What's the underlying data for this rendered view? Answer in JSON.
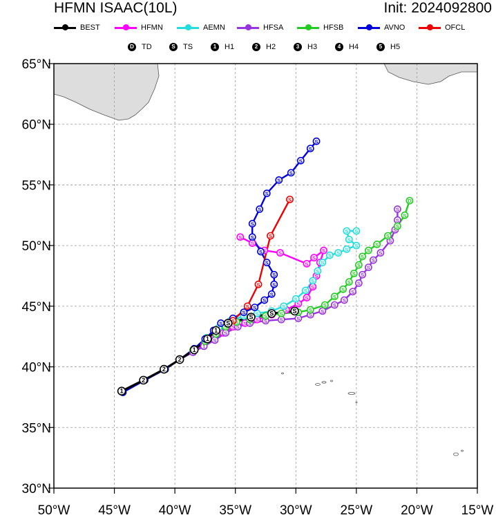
{
  "header": {
    "title": "HFMN ISAAC(10L)",
    "init_label": "Init: 2024092800"
  },
  "legend": [
    {
      "name": "BEST",
      "color": "#000000"
    },
    {
      "name": "HFMN",
      "color": "#ff00ff"
    },
    {
      "name": "AEMN",
      "color": "#22dddd"
    },
    {
      "name": "HFSA",
      "color": "#9933dd"
    },
    {
      "name": "HFSB",
      "color": "#22cc22"
    },
    {
      "name": "AVNO",
      "color": "#0000dd"
    },
    {
      "name": "OFCL",
      "color": "#ee0000"
    }
  ],
  "intensity_legend": [
    {
      "symbol": "D",
      "label": "TD"
    },
    {
      "symbol": "S",
      "label": "TS"
    },
    {
      "symbol": "1",
      "label": "H1"
    },
    {
      "symbol": "2",
      "label": "H2"
    },
    {
      "symbol": "3",
      "label": "H3"
    },
    {
      "symbol": "4",
      "label": "H4"
    },
    {
      "symbol": "5",
      "label": "H5"
    }
  ],
  "chart_data": {
    "type": "line",
    "title": "HFMN ISAAC(10L)",
    "subtitle": "Init: 2024092800",
    "x_axis": {
      "range": [
        -50,
        -15
      ],
      "ticks": [
        -50,
        -45,
        -40,
        -35,
        -30,
        -25,
        -20,
        -15
      ],
      "tick_labels": [
        "50°W",
        "45°W",
        "40°W",
        "35°W",
        "30°W",
        "25°W",
        "20°W",
        "15°W"
      ]
    },
    "y_axis": {
      "range": [
        30,
        65
      ],
      "ticks": [
        30,
        35,
        40,
        45,
        50,
        55,
        60,
        65
      ],
      "tick_labels": [
        "30°N",
        "35°N",
        "40°N",
        "45°N",
        "50°N",
        "55°N",
        "60°N",
        "65°N"
      ]
    },
    "grid": true,
    "legend_position": "top",
    "series": [
      {
        "name": "HFMN",
        "color": "#ff00ff",
        "points": [
          [
            -44.3,
            37.9,
            "1"
          ],
          [
            -42.5,
            38.9,
            "2"
          ],
          [
            -40.8,
            39.8,
            "2"
          ],
          [
            -39.6,
            40.6,
            "2"
          ],
          [
            -38.5,
            41.3,
            "1"
          ],
          [
            -37.6,
            41.8,
            "1"
          ],
          [
            -36.8,
            42.3,
            "S"
          ],
          [
            -36.0,
            42.8,
            "S"
          ],
          [
            -35.2,
            43.3,
            "S"
          ],
          [
            -34.2,
            43.6,
            "S"
          ],
          [
            -33.2,
            43.9,
            "S"
          ],
          [
            -32.0,
            44.3,
            "S"
          ],
          [
            -30.8,
            44.7,
            "S"
          ],
          [
            -29.8,
            45.2,
            "S"
          ],
          [
            -29.1,
            45.7,
            "S"
          ],
          [
            -28.6,
            46.6,
            "S"
          ],
          [
            -28.3,
            47.5,
            "S"
          ],
          [
            -28.0,
            48.6,
            "S"
          ],
          [
            -27.7,
            49.6,
            "S"
          ],
          [
            -28.5,
            49.0,
            "S"
          ],
          [
            -29.1,
            48.5,
            "S"
          ],
          [
            -31.3,
            49.4,
            "S"
          ],
          [
            -32.6,
            49.6,
            "S"
          ],
          [
            -33.6,
            50.2,
            "S"
          ],
          [
            -34.6,
            50.7,
            "S"
          ]
        ]
      },
      {
        "name": "AEMN",
        "color": "#22dddd",
        "points": [
          [
            -44.3,
            37.9,
            "1"
          ],
          [
            -42.5,
            38.9,
            "2"
          ],
          [
            -40.8,
            39.8,
            "2"
          ],
          [
            -39.6,
            40.6,
            "2"
          ],
          [
            -38.4,
            41.5,
            "1"
          ],
          [
            -37.4,
            42.4,
            "1"
          ],
          [
            -36.4,
            43.2,
            "S"
          ],
          [
            -35.4,
            43.8,
            "S"
          ],
          [
            -34.3,
            44.2,
            "S"
          ],
          [
            -33.2,
            44.4,
            "S"
          ],
          [
            -32.0,
            44.6,
            "S"
          ],
          [
            -31.0,
            45.0,
            "S"
          ],
          [
            -30.0,
            45.6,
            "S"
          ],
          [
            -29.2,
            46.3,
            "S"
          ],
          [
            -28.6,
            47.1,
            "S"
          ],
          [
            -28.2,
            47.9,
            "S"
          ],
          [
            -27.8,
            48.6,
            "S"
          ],
          [
            -27.2,
            49.2,
            "S"
          ],
          [
            -26.5,
            49.4,
            "S"
          ],
          [
            -25.8,
            49.7,
            "S"
          ],
          [
            -25.0,
            50.0,
            "S"
          ],
          [
            -25.6,
            50.5,
            "S"
          ],
          [
            -25.8,
            51.2,
            "S"
          ],
          [
            -25.0,
            51.2,
            "S"
          ]
        ]
      },
      {
        "name": "HFSA",
        "color": "#9933dd",
        "points": [
          [
            -44.3,
            37.9,
            "1"
          ],
          [
            -42.5,
            38.9,
            "2"
          ],
          [
            -40.8,
            39.8,
            "2"
          ],
          [
            -39.6,
            40.6,
            "2"
          ],
          [
            -38.5,
            41.2,
            "1"
          ],
          [
            -37.6,
            41.7,
            "1"
          ],
          [
            -36.7,
            42.2,
            "S"
          ],
          [
            -35.8,
            42.8,
            "S"
          ],
          [
            -34.8,
            43.3,
            "S"
          ],
          [
            -33.8,
            43.6,
            "S"
          ],
          [
            -32.5,
            43.8,
            "S"
          ],
          [
            -31.2,
            43.9,
            "S"
          ],
          [
            -29.8,
            44.0,
            "S"
          ],
          [
            -28.8,
            44.3,
            "S"
          ],
          [
            -27.8,
            44.6,
            "S"
          ],
          [
            -26.8,
            45.1,
            "S"
          ],
          [
            -26.0,
            45.5,
            "S"
          ],
          [
            -25.3,
            46.2,
            "S"
          ],
          [
            -24.8,
            46.9,
            "S"
          ],
          [
            -24.5,
            47.6,
            "S"
          ],
          [
            -24.0,
            48.2,
            "S"
          ],
          [
            -23.6,
            48.8,
            "S"
          ],
          [
            -23.0,
            49.4,
            "S"
          ],
          [
            -22.2,
            50.4,
            "S"
          ],
          [
            -21.8,
            51.3,
            "S"
          ],
          [
            -21.6,
            52.1,
            "S"
          ],
          [
            -21.6,
            53.0,
            "S"
          ]
        ]
      },
      {
        "name": "HFSB",
        "color": "#22cc22",
        "points": [
          [
            -44.3,
            37.9,
            "1"
          ],
          [
            -42.5,
            38.9,
            "2"
          ],
          [
            -40.8,
            39.8,
            "2"
          ],
          [
            -39.6,
            40.6,
            "2"
          ],
          [
            -38.5,
            41.4,
            "1"
          ],
          [
            -37.5,
            42.1,
            "1"
          ],
          [
            -36.6,
            42.7,
            "1"
          ],
          [
            -35.8,
            43.3,
            "S"
          ],
          [
            -34.9,
            43.7,
            "S"
          ],
          [
            -33.8,
            43.9,
            "S"
          ],
          [
            -32.5,
            44.2,
            "S"
          ],
          [
            -31.2,
            44.4,
            "S"
          ],
          [
            -29.8,
            44.5,
            "S"
          ],
          [
            -28.8,
            44.7,
            "S"
          ],
          [
            -27.6,
            45.1,
            "S"
          ],
          [
            -26.8,
            45.8,
            "S"
          ],
          [
            -26.1,
            46.4,
            "S"
          ],
          [
            -25.6,
            47.0,
            "S"
          ],
          [
            -25.2,
            47.7,
            "S"
          ],
          [
            -24.8,
            48.4,
            "S"
          ],
          [
            -24.5,
            49.1,
            "S"
          ],
          [
            -24.0,
            49.6,
            "S"
          ],
          [
            -23.3,
            50.1,
            "S"
          ],
          [
            -22.4,
            50.8,
            "S"
          ],
          [
            -21.6,
            51.6,
            "S"
          ],
          [
            -21.0,
            52.5,
            "S"
          ],
          [
            -20.6,
            53.7,
            "D"
          ]
        ]
      },
      {
        "name": "AVNO",
        "color": "#0000dd",
        "points": [
          [
            -44.3,
            37.9,
            "1"
          ],
          [
            -42.5,
            38.9,
            "2"
          ],
          [
            -40.8,
            39.8,
            "2"
          ],
          [
            -39.6,
            40.6,
            "2"
          ],
          [
            -38.4,
            41.5,
            "1"
          ],
          [
            -37.5,
            42.3,
            "1"
          ],
          [
            -36.8,
            43.0,
            "S"
          ],
          [
            -36.2,
            43.6,
            "S"
          ],
          [
            -35.2,
            44.0,
            "S"
          ],
          [
            -34.3,
            44.5,
            "S"
          ],
          [
            -33.4,
            44.9,
            "S"
          ],
          [
            -32.6,
            45.5,
            "S"
          ],
          [
            -32.0,
            46.0,
            "S"
          ],
          [
            -31.8,
            46.8,
            "S"
          ],
          [
            -31.8,
            47.6,
            "S"
          ],
          [
            -32.4,
            48.6,
            "S"
          ],
          [
            -32.9,
            49.5,
            "S"
          ],
          [
            -33.6,
            50.7,
            "S"
          ],
          [
            -33.6,
            51.8,
            "S"
          ],
          [
            -33.0,
            53.0,
            "S"
          ],
          [
            -32.4,
            54.3,
            "S"
          ],
          [
            -31.4,
            55.4,
            "S"
          ],
          [
            -30.4,
            56.0,
            "S"
          ],
          [
            -29.6,
            57.0,
            "S"
          ],
          [
            -28.8,
            58.0,
            "S"
          ],
          [
            -28.3,
            58.6,
            "S"
          ]
        ]
      },
      {
        "name": "OFCL",
        "color": "#ee0000",
        "points": [
          [
            -35.2,
            43.8,
            "S"
          ],
          [
            -34.0,
            45.0,
            "S"
          ],
          [
            -33.1,
            46.8,
            "S"
          ],
          [
            -32.1,
            50.8,
            "S"
          ],
          [
            -30.5,
            53.8,
            "S"
          ]
        ]
      },
      {
        "name": "BEST",
        "color": "#000000",
        "points": [
          [
            -44.4,
            38.0,
            "1"
          ],
          [
            -42.6,
            38.9,
            "2"
          ],
          [
            -40.9,
            39.8,
            "2"
          ],
          [
            -39.6,
            40.6,
            "2"
          ],
          [
            -38.4,
            41.4,
            "1"
          ],
          [
            -37.3,
            42.3,
            "1"
          ],
          [
            -36.6,
            43.0,
            "1"
          ],
          [
            -35.6,
            43.6,
            "S"
          ],
          [
            -33.7,
            44.1,
            "S"
          ],
          [
            -32.0,
            44.4,
            "S"
          ],
          [
            -30.1,
            44.6,
            "S"
          ]
        ]
      }
    ]
  }
}
